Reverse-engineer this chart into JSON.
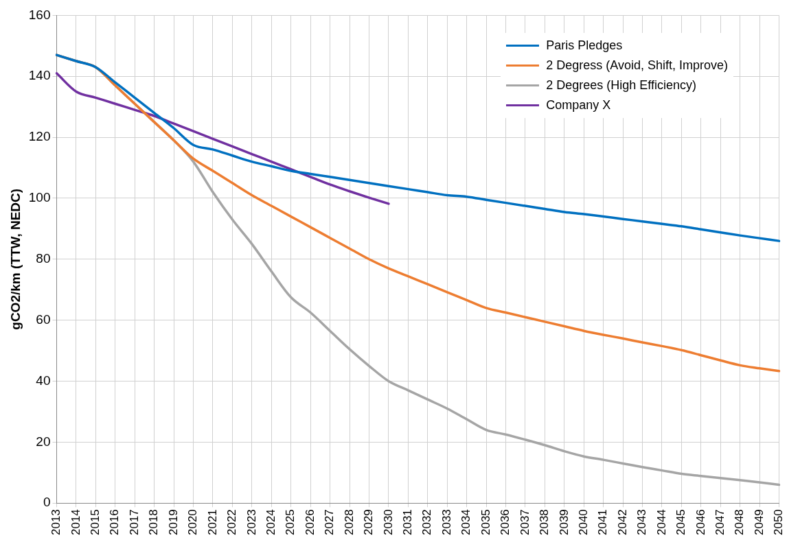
{
  "chart_data": {
    "type": "line",
    "ylabel": "gCO2/km (TTW, NEDC)",
    "categories": [
      "2013",
      "2014",
      "2015",
      "2016",
      "2017",
      "2018",
      "2019",
      "2020",
      "2021",
      "2022",
      "2023",
      "2024",
      "2025",
      "2026",
      "2027",
      "2028",
      "2029",
      "2030",
      "2031",
      "2032",
      "2033",
      "2034",
      "2035",
      "2036",
      "2037",
      "2038",
      "2039",
      "2040",
      "2041",
      "2042",
      "2043",
      "2044",
      "2045",
      "2046",
      "2047",
      "2048",
      "2049",
      "2050"
    ],
    "series": [
      {
        "name": "Paris Pledges",
        "color": "#0070c0",
        "values": [
          147,
          145,
          143,
          138,
          133,
          128,
          123,
          117.5,
          116,
          114,
          112,
          110.5,
          109,
          108,
          107,
          106,
          105,
          104,
          103,
          102,
          101,
          100.5,
          99.5,
          98.5,
          97.5,
          96.5,
          95.5,
          94.8,
          94,
          93.2,
          92.4,
          91.6,
          90.8,
          89.8,
          88.8,
          87.8,
          86.9,
          86
        ]
      },
      {
        "name": "2 Degress (Avoid, Shift, Improve)",
        "color": "#ed7d31",
        "values": [
          147,
          145,
          143,
          137,
          131,
          125,
          119,
          113,
          109,
          105,
          101,
          97.5,
          94,
          90.5,
          87,
          83.5,
          80,
          77,
          74.4,
          71.8,
          69.2,
          66.6,
          64,
          62.5,
          61,
          59.5,
          58,
          56.5,
          55.2,
          54,
          52.7,
          51.5,
          50.2,
          48.5,
          46.8,
          45.2,
          44.2,
          43.3
        ]
      },
      {
        "name": "2 Degrees (High Efficiency)",
        "color": "#a5a5a5",
        "values": [
          147,
          145,
          143,
          137,
          131,
          125,
          119,
          112,
          102,
          93,
          85,
          76,
          67.5,
          62.5,
          56.5,
          50.5,
          45,
          40,
          37,
          34,
          31,
          27.5,
          24,
          22.5,
          20.8,
          19,
          17,
          15.3,
          14.2,
          13,
          11.8,
          10.7,
          9.6,
          8.9,
          8.2,
          7.5,
          6.8,
          6
        ]
      },
      {
        "name": "Company X",
        "color": "#7030a0",
        "values": [
          141,
          135,
          133,
          131,
          129,
          127,
          124.5,
          122,
          119.5,
          117,
          114.5,
          112,
          109.5,
          107,
          104.5,
          102.3,
          100.2,
          98.2,
          null,
          null,
          null,
          null,
          null,
          null,
          null,
          null,
          null,
          null,
          null,
          null,
          null,
          null,
          null,
          null,
          null,
          null,
          null,
          null
        ]
      }
    ],
    "ylim": [
      0,
      160
    ],
    "yticks": [
      0,
      20,
      40,
      60,
      80,
      100,
      120,
      140,
      160
    ],
    "grid": true,
    "legend": "top right",
    "marker": "none",
    "line_style": "solid"
  }
}
